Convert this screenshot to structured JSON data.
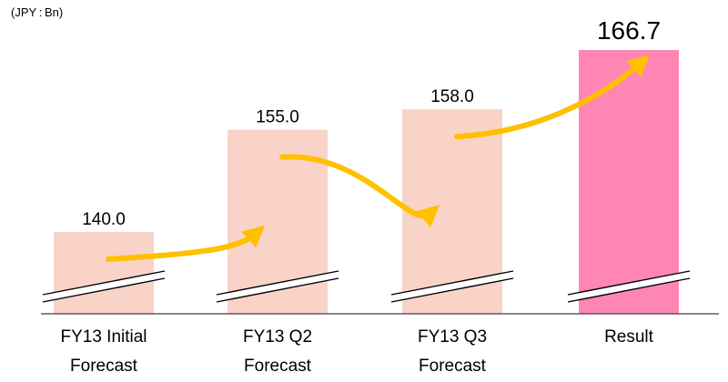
{
  "unit_label": "(JPY : Bn)",
  "colors": {
    "bar": "#f9d3c8",
    "bar_highlight": "#ff85b4",
    "arrow": "#ffc000",
    "axis": "#404040"
  },
  "chart_data": {
    "type": "bar",
    "categories": [
      [
        "FY13 Initial",
        "Forecast"
      ],
      [
        "FY13 Q2",
        "Forecast"
      ],
      [
        "FY13 Q3",
        "Forecast"
      ],
      [
        "Result"
      ]
    ],
    "values": [
      140.0,
      155.0,
      158.0,
      166.7
    ],
    "value_labels": [
      "140.0",
      "155.0",
      "158.0",
      "166.7"
    ],
    "highlight_index": 3,
    "axis_break": true,
    "title": "",
    "xlabel": "",
    "ylabel": ""
  }
}
